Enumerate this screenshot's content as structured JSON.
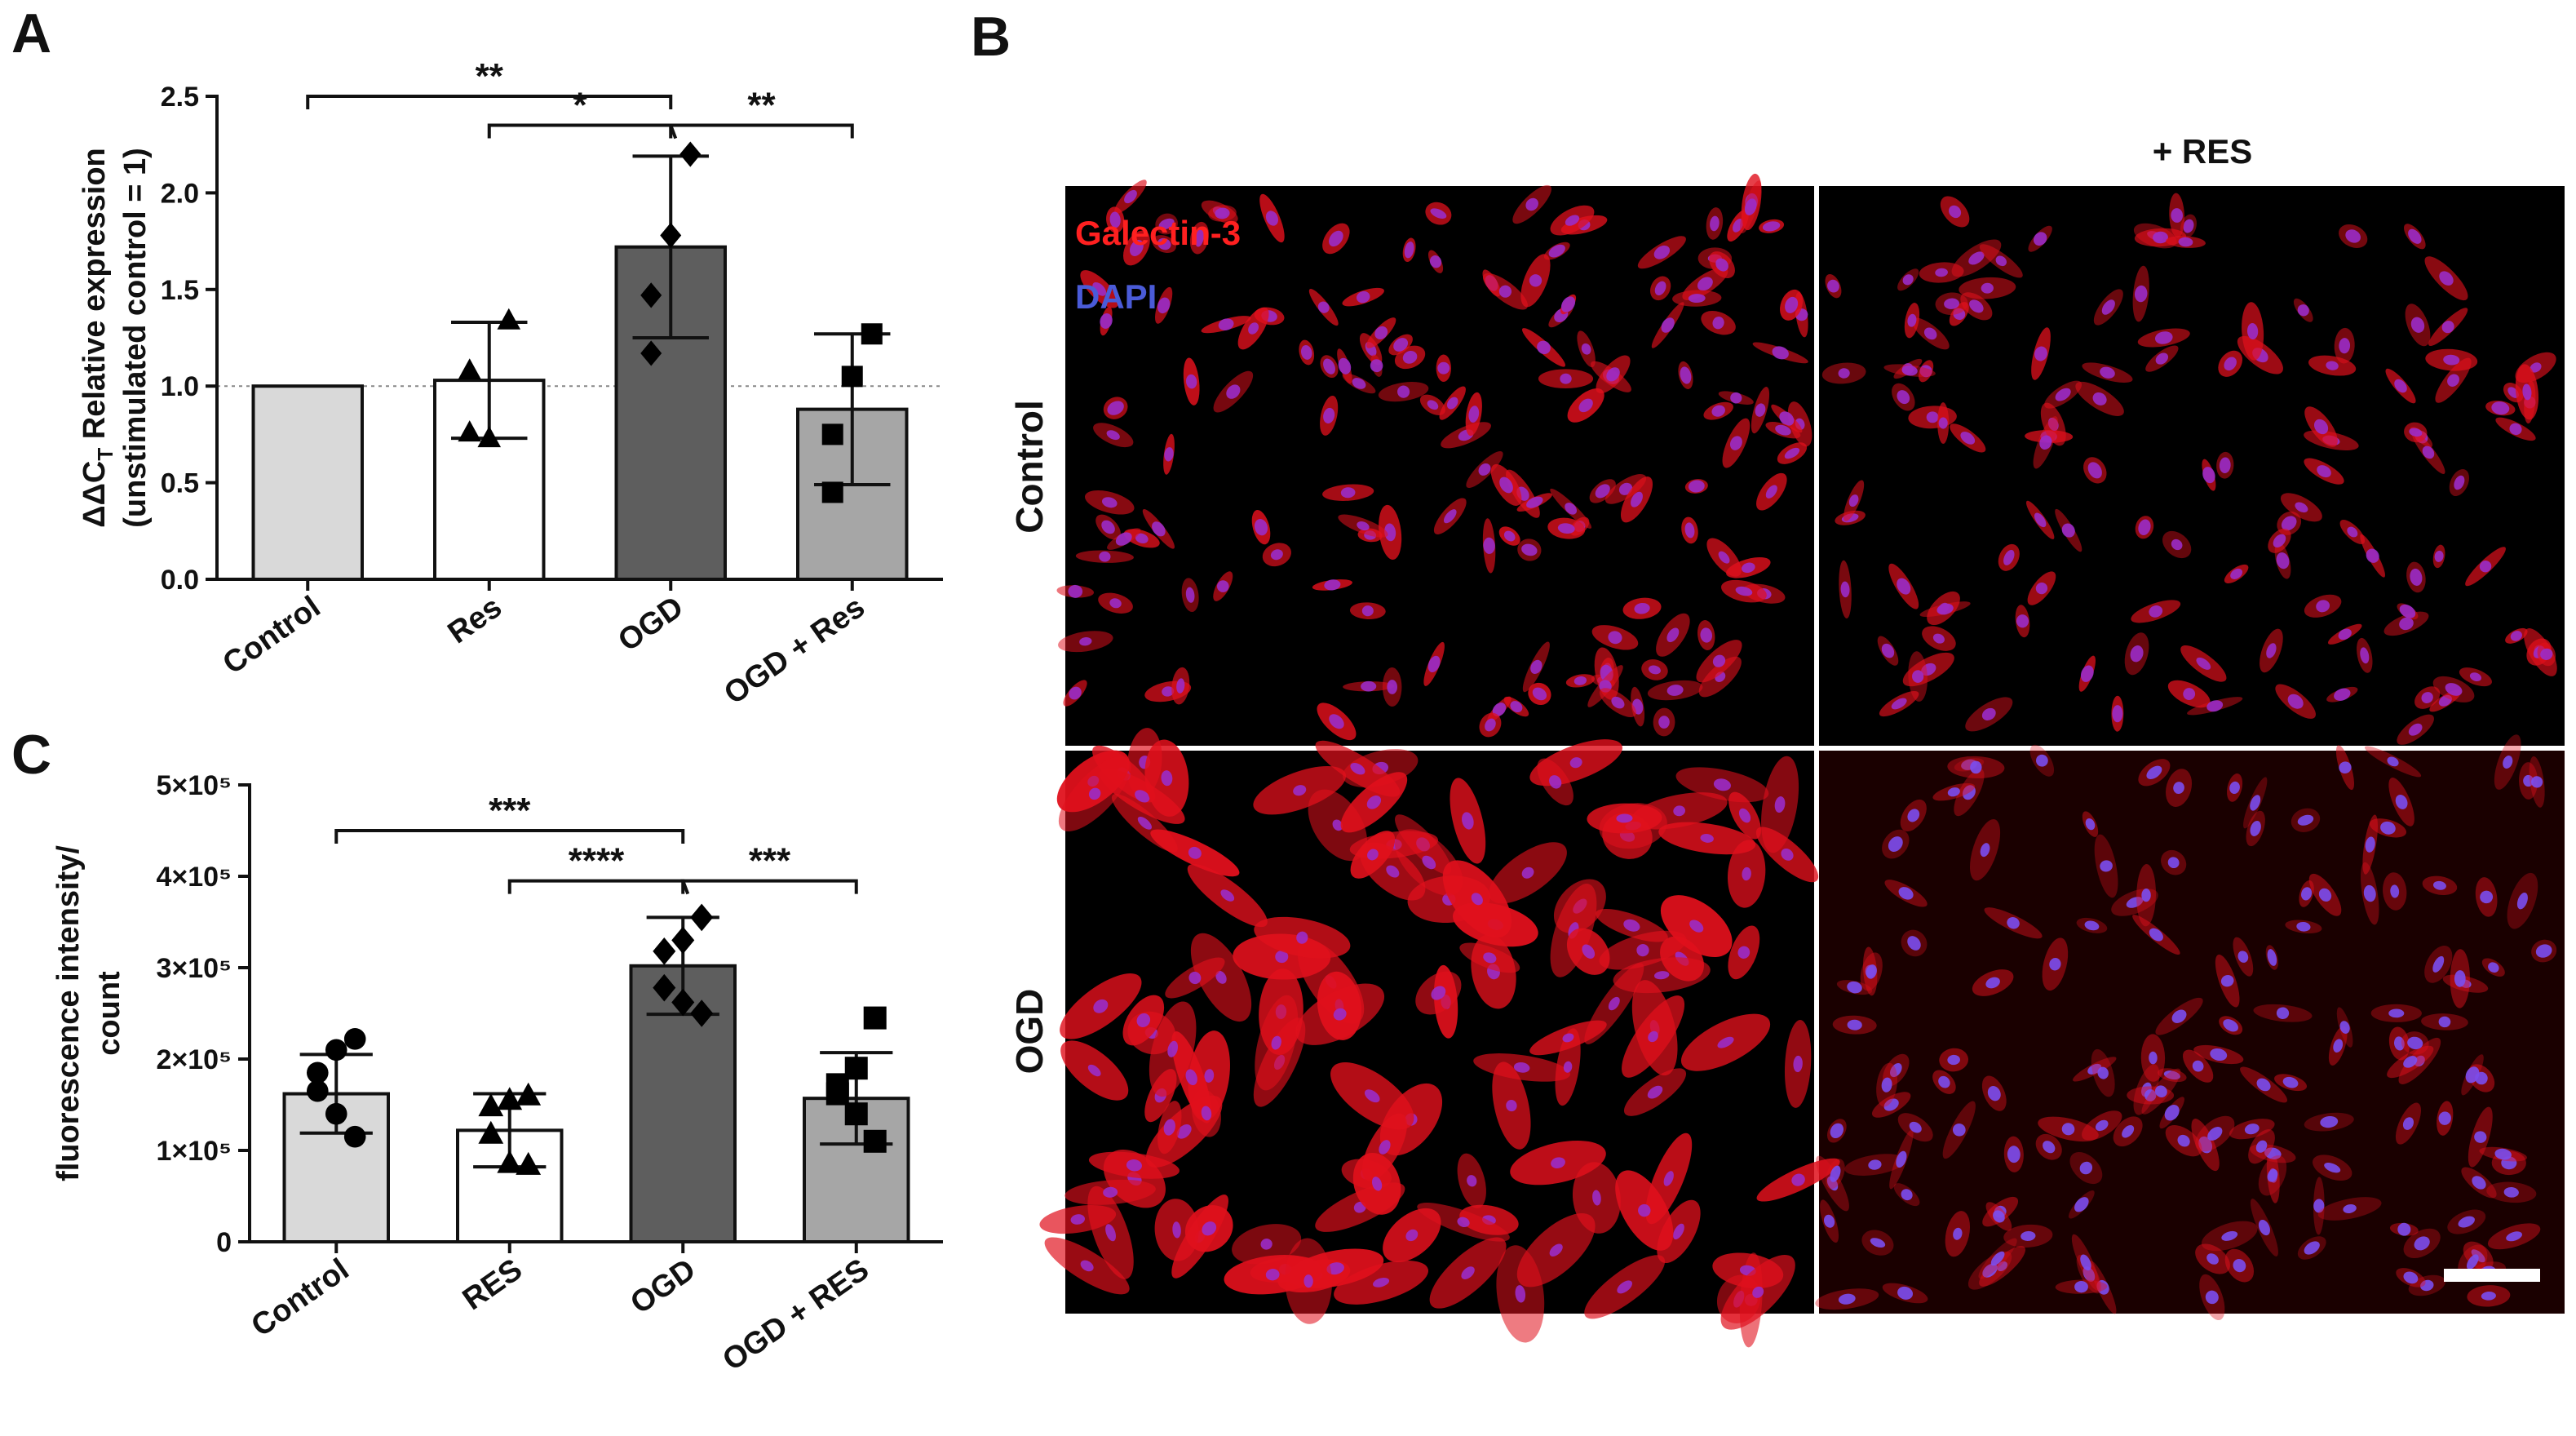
{
  "panels": {
    "A": "A",
    "B": "B",
    "C": "C"
  },
  "chart_data": [
    {
      "panel": "A",
      "type": "bar",
      "categories": [
        "Control",
        "Res",
        "OGD",
        "OGD + Res"
      ],
      "values": [
        1.0,
        1.03,
        1.72,
        0.88
      ],
      "errors": [
        0,
        0.3,
        0.47,
        0.39
      ],
      "points": [
        [
          1.0,
          1.0,
          1.0,
          1.0
        ],
        [
          1.34,
          0.73,
          0.76,
          1.08
        ],
        [
          2.2,
          1.78,
          1.47,
          1.17
        ],
        [
          1.27,
          1.05,
          0.75,
          0.45
        ]
      ],
      "markers": [
        "none",
        "triangle",
        "diamond",
        "square"
      ],
      "colors": [
        "#d9d9d9",
        "#ffffff",
        "#5e5e5e",
        "#a6a6a6"
      ],
      "ylabel_line1": "ΔΔC",
      "ylabel_sub": "T",
      "ylabel_line1_rest": " Relative expression",
      "ylabel_line2": "(unstimulated control = 1)",
      "ylim": [
        0,
        2.5
      ],
      "yticks": [
        "0.0",
        "0.5",
        "1.0",
        "1.5",
        "2.0",
        "2.5"
      ],
      "ytick_values": [
        0,
        0.5,
        1.0,
        1.5,
        2.0,
        2.5
      ],
      "reference_line": 1.0,
      "significance": [
        {
          "from": 0,
          "to": 2,
          "label": "**",
          "level": 2.5
        },
        {
          "from": 1,
          "to": 2,
          "label": "*",
          "level": 2.35
        },
        {
          "from": 2,
          "to": 3,
          "label": "**",
          "level": 2.35
        }
      ]
    },
    {
      "panel": "C",
      "type": "bar",
      "categories": [
        "Control",
        "RES",
        "OGD",
        "OGD + RES"
      ],
      "values": [
        162000,
        122000,
        302000,
        157000
      ],
      "errors": [
        43000,
        40000,
        53000,
        50000
      ],
      "points": [
        [
          222000,
          210000,
          185000,
          165000,
          140000,
          115000
        ],
        [
          160000,
          155000,
          148000,
          118000,
          86000,
          84000
        ],
        [
          355000,
          330000,
          318000,
          278000,
          262000,
          250000
        ],
        [
          245000,
          190000,
          172000,
          162000,
          140000,
          110000
        ]
      ],
      "markers": [
        "circle",
        "triangle",
        "diamond",
        "square"
      ],
      "colors": [
        "#d9d9d9",
        "#ffffff",
        "#5e5e5e",
        "#a6a6a6"
      ],
      "ylabel_line1": "fluorescence intensity/",
      "ylabel_line2": "count",
      "ylim": [
        0,
        500000
      ],
      "yticks": [
        "0",
        "1×10⁵",
        "2×10⁵",
        "3×10⁵",
        "4×10⁵",
        "5×10⁵"
      ],
      "ytick_values": [
        0,
        100000,
        200000,
        300000,
        400000,
        500000
      ],
      "significance": [
        {
          "from": 0,
          "to": 2,
          "label": "***",
          "level": 450000
        },
        {
          "from": 1,
          "to": 2,
          "label": "****",
          "level": 395000
        },
        {
          "from": 2,
          "to": 3,
          "label": "***",
          "level": 395000
        }
      ]
    }
  ],
  "micrographs": {
    "column_label": "+ RES",
    "row_labels": [
      "Control",
      "OGD"
    ],
    "stain_labels": [
      "Galectin-3",
      "DAPI"
    ],
    "stain_colors": [
      "#ff2020",
      "#4a5bd8"
    ]
  }
}
